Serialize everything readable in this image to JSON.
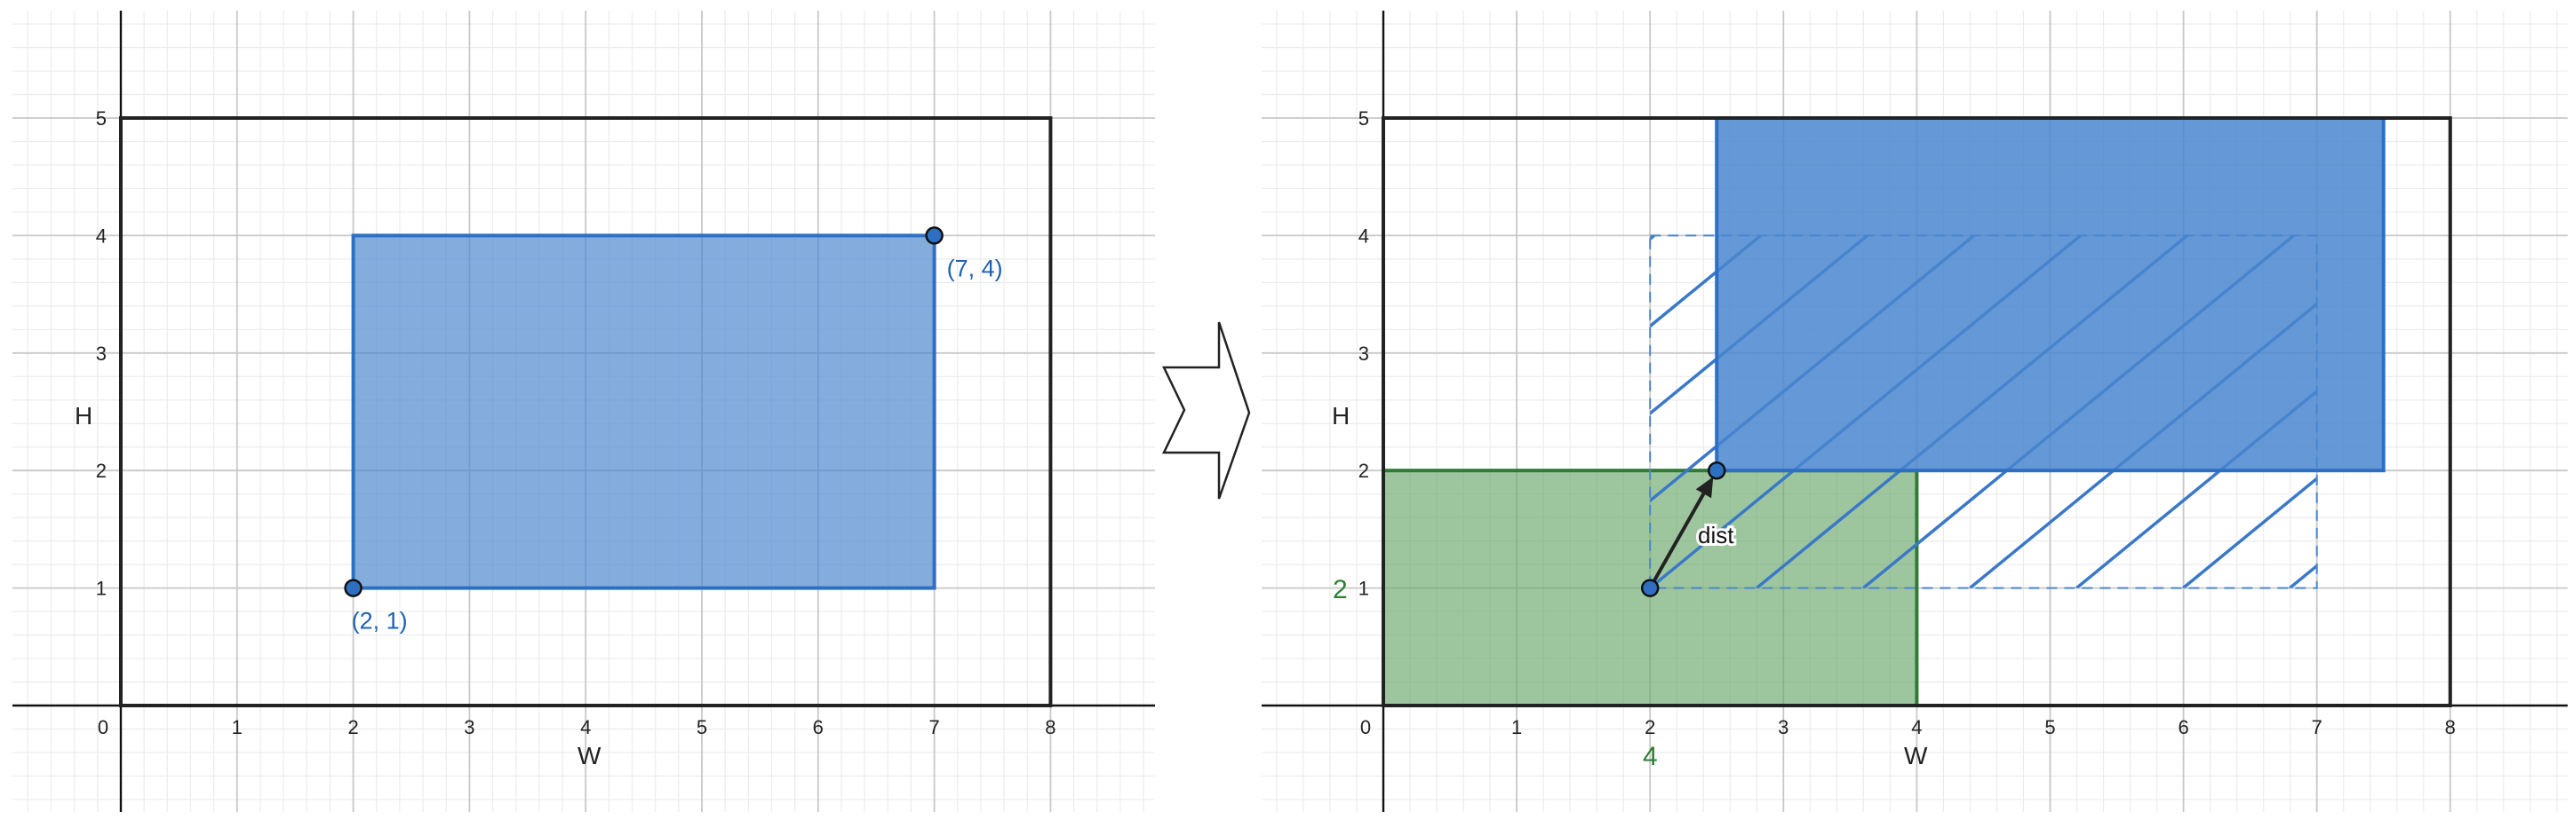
{
  "left_graph": {
    "x_ticks": [
      "0",
      "1",
      "2",
      "3",
      "4",
      "5",
      "6",
      "7",
      "8"
    ],
    "y_ticks": [
      "1",
      "2",
      "3",
      "4",
      "5"
    ],
    "x_axis_label": "W",
    "y_axis_label": "H",
    "outer_rect": {
      "x1": 0,
      "y1": 0,
      "x2": 8,
      "y2": 5
    },
    "blue_rect": {
      "x1": 2,
      "y1": 1,
      "x2": 7,
      "y2": 4
    },
    "point_bottom_left": {
      "x": 2,
      "y": 1,
      "label": "(2, 1)"
    },
    "point_top_right": {
      "x": 7,
      "y": 4,
      "label": "(7, 4)"
    }
  },
  "right_graph": {
    "x_ticks": [
      "0",
      "1",
      "2",
      "3",
      "4",
      "5",
      "6",
      "7",
      "8"
    ],
    "y_ticks": [
      "1",
      "2",
      "3",
      "4",
      "5"
    ],
    "x_axis_label": "W",
    "y_axis_label": "H",
    "outer_rect": {
      "x1": 0,
      "y1": 0,
      "x2": 8,
      "y2": 5
    },
    "green_rect": {
      "x1": 0,
      "y1": 0,
      "x2": 4,
      "y2": 2
    },
    "green_width_label": "4",
    "green_height_label": "2",
    "hatched_rect": {
      "x1": 2,
      "y1": 1,
      "x2": 7,
      "y2": 4
    },
    "moved_blue_rect": {
      "x1": 2.5,
      "y1": 2,
      "x2": 7.5,
      "y2": 5
    },
    "origin_point": {
      "x": 2,
      "y": 1
    },
    "moved_point": {
      "x": 2.5,
      "y": 2
    },
    "arrow_label": "dist"
  },
  "colors": {
    "blue_fill": "#4a86cf",
    "blue_stroke": "#2c6fc4",
    "green_fill": "#6aa86a",
    "green_stroke": "#2f7a35",
    "green_text": "#2e7d32",
    "blue_text": "#1f62b0",
    "axis": "#111111",
    "grid_major": "#c8c8c8",
    "grid_minor": "#ececec"
  }
}
